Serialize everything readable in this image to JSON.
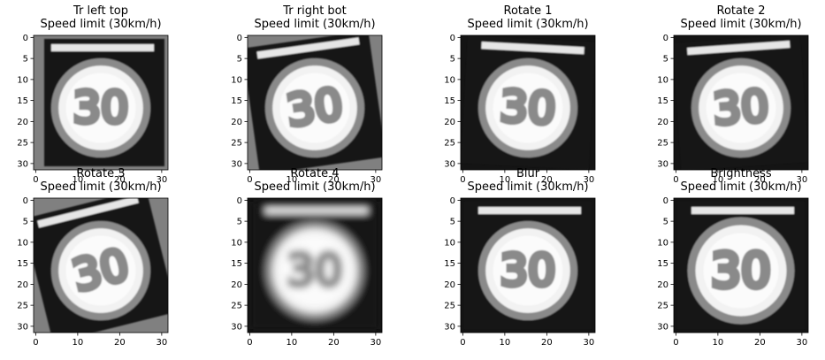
{
  "figure": {
    "label": "Speed limit (30km/h)",
    "panels": [
      {
        "title": "Tr left top",
        "variant": "shift-left"
      },
      {
        "title": "Tr right bot",
        "variant": "shift-right-rot"
      },
      {
        "title": "Rotate 1",
        "variant": "rotate-small"
      },
      {
        "title": "Rotate 2",
        "variant": "rotate-small-2"
      },
      {
        "title": "Rotate 3",
        "variant": "rotate-large"
      },
      {
        "title": "Rotate 4",
        "variant": "blurred"
      },
      {
        "title": "Blur",
        "variant": "plain"
      },
      {
        "title": "Brightness",
        "variant": "bright"
      }
    ],
    "x_ticks": [
      "0",
      "10",
      "20",
      "30"
    ],
    "y_ticks": [
      "0",
      "5",
      "10",
      "15",
      "20",
      "25",
      "30"
    ],
    "sign_number": "30",
    "colors": {
      "background": "#ffffff",
      "sign_face": "#f2f2f2",
      "ring": "#8a8a8a",
      "dark": "#141414",
      "gray_fill": "#808080"
    }
  }
}
